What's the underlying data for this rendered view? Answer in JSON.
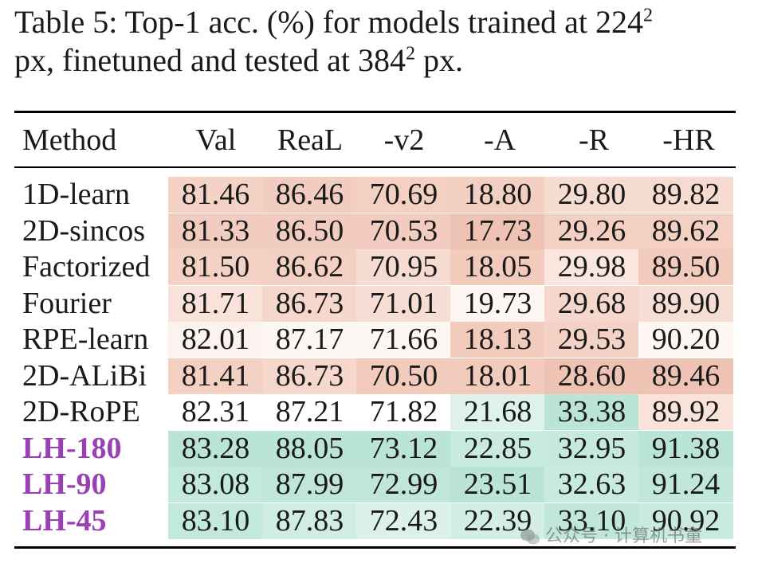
{
  "caption": {
    "prefix": "Table 5: Top-1 acc. (%) for models trained at 224",
    "sup1": "2",
    "mid": "px, finetuned and tested at 384",
    "sup2": "2",
    "suffix": " px."
  },
  "table": {
    "headers": [
      "Method",
      "Val",
      "ReaL",
      "-v2",
      "-A",
      "-R",
      "-HR"
    ],
    "rows": [
      {
        "method": "1D-learn",
        "ours": false,
        "values": [
          "81.46",
          "86.46",
          "70.69",
          "18.80",
          "29.80",
          "89.82"
        ],
        "colors": [
          "#f4d3c6",
          "#f2cdbf",
          "#f3d0c2",
          "#f3cfc1",
          "#f6dbd0",
          "#f6dbd0"
        ]
      },
      {
        "method": "2D-sincos",
        "ours": false,
        "values": [
          "81.33",
          "86.50",
          "70.53",
          "17.73",
          "29.26",
          "89.62"
        ],
        "colors": [
          "#f2cdbf",
          "#f2cdbf",
          "#f2cdbf",
          "#efc3b4",
          "#f3d0c2",
          "#f3d0c2"
        ]
      },
      {
        "method": "Factorized",
        "ours": false,
        "values": [
          "81.50",
          "86.62",
          "70.95",
          "18.05",
          "29.98",
          "89.50"
        ],
        "colors": [
          "#f4d3c6",
          "#f3d0c2",
          "#f6dbd0",
          "#f2cbbd",
          "#f9e6de",
          "#f2cbbd"
        ]
      },
      {
        "method": "Fourier",
        "ours": false,
        "values": [
          "81.71",
          "86.73",
          "71.01",
          "19.73",
          "29.68",
          "89.90"
        ],
        "colors": [
          "#f8e2d9",
          "#f5d7cb",
          "#f7ded4",
          "#fdf6f3",
          "#f5d7cb",
          "#f7ded4"
        ]
      },
      {
        "method": "RPE-learn",
        "ours": false,
        "values": [
          "82.01",
          "87.17",
          "71.66",
          "18.13",
          "29.53",
          "90.20"
        ],
        "colors": [
          "#fcf2ee",
          "#fdf7f4",
          "#fdf7f4",
          "#f2cbbd",
          "#f4d3c6",
          "#fdf6f3"
        ]
      },
      {
        "method": "2D-ALiBi",
        "ours": false,
        "values": [
          "81.41",
          "86.73",
          "70.50",
          "18.01",
          "28.60",
          "89.46"
        ],
        "colors": [
          "#f3d0c2",
          "#f5d7cb",
          "#f2cbbd",
          "#f2cbbd",
          "#efc3b4",
          "#efc3b4"
        ]
      },
      {
        "method": "2D-RoPE",
        "ours": false,
        "values": [
          "82.31",
          "87.21",
          "71.82",
          "21.68",
          "33.38",
          "89.92"
        ],
        "colors": [
          "#ffffff",
          "#ffffff",
          "#ffffff",
          "#dff2ea",
          "#b9e4d6",
          "#f8e2d9"
        ]
      },
      {
        "method": "LH-180",
        "ours": true,
        "values": [
          "83.28",
          "88.05",
          "73.12",
          "22.85",
          "32.95",
          "91.38"
        ],
        "colors": [
          "#b9e4d6",
          "#b9e4d6",
          "#b9e4d6",
          "#c9ebdf",
          "#c5e9dd",
          "#b9e4d6"
        ]
      },
      {
        "method": "LH-90",
        "ours": true,
        "values": [
          "83.08",
          "87.99",
          "72.99",
          "23.51",
          "32.63",
          "91.24"
        ],
        "colors": [
          "#c3e8dc",
          "#bfe6d9",
          "#bfe6d9",
          "#b9e4d6",
          "#c9ebdf",
          "#c0e7da"
        ]
      },
      {
        "method": "LH-45",
        "ours": true,
        "values": [
          "83.10",
          "87.83",
          "72.43",
          "22.39",
          "33.10",
          "90.92"
        ],
        "colors": [
          "#c3e8dc",
          "#cfede3",
          "#dcf1e9",
          "#d3eee5",
          "#c1e7db",
          "#c9ebdf"
        ]
      }
    ]
  },
  "watermark": "公众号 · 计算机书童"
}
